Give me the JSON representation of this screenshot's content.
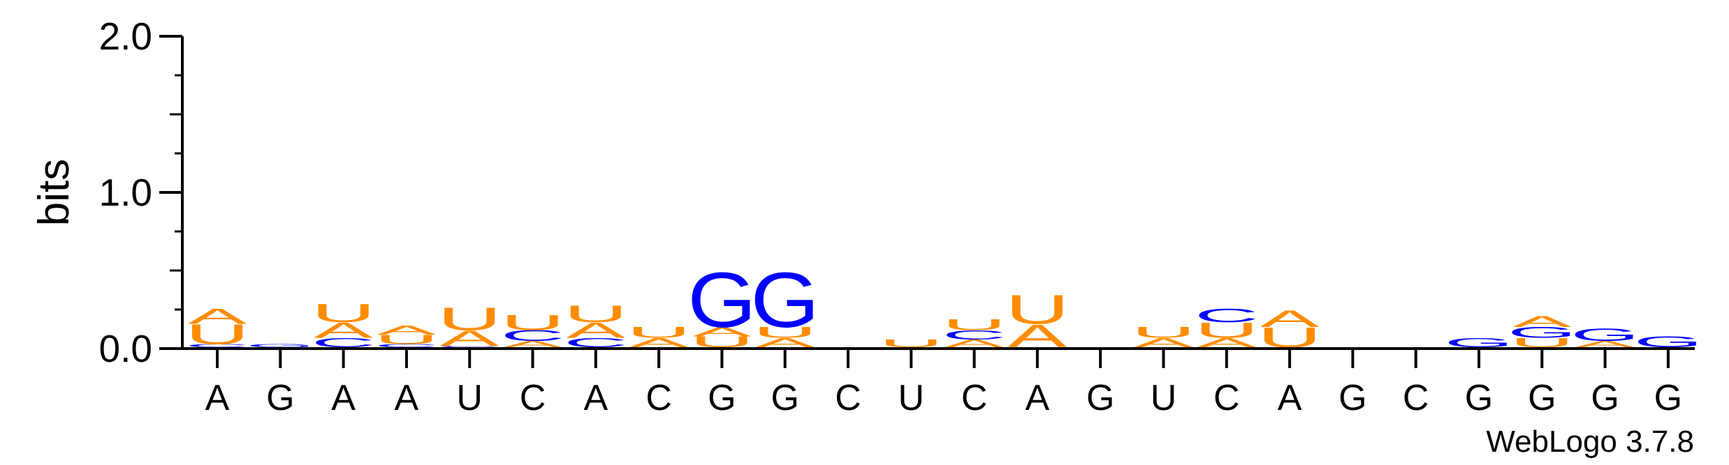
{
  "chart_data": {
    "type": "sequence_logo",
    "ylabel": "bits",
    "ylim": [
      0,
      2.0
    ],
    "yticks": [
      "0.0",
      "1.0",
      "2.0"
    ],
    "xticks": [
      "A",
      "G",
      "A",
      "A",
      "U",
      "C",
      "A",
      "C",
      "G",
      "G",
      "C",
      "U",
      "C",
      "A",
      "G",
      "U",
      "C",
      "A",
      "G",
      "C",
      "G",
      "G",
      "G",
      "G"
    ],
    "footer": "WebLogo 3.7.8",
    "colors": {
      "A": "#ff8c00",
      "U": "#ff8c00",
      "G": "#0000ff",
      "C": "#0000ff"
    },
    "positions": [
      [
        [
          "C",
          0.02
        ],
        [
          "U",
          0.13
        ],
        [
          "A",
          0.1
        ]
      ],
      [
        [
          "G",
          0.02
        ]
      ],
      [
        [
          "C",
          0.06
        ],
        [
          "A",
          0.1
        ],
        [
          "U",
          0.12
        ]
      ],
      [
        [
          "C",
          0.02
        ],
        [
          "U",
          0.06
        ],
        [
          "A",
          0.06
        ]
      ],
      [
        [
          "C",
          0.01
        ],
        [
          "A",
          0.1
        ],
        [
          "U",
          0.15
        ]
      ],
      [
        [
          "A",
          0.04
        ],
        [
          "C",
          0.07
        ],
        [
          "U",
          0.1
        ]
      ],
      [
        [
          "C",
          0.06
        ],
        [
          "A",
          0.1
        ],
        [
          "U",
          0.11
        ]
      ],
      [
        [
          "A",
          0.06
        ],
        [
          "U",
          0.07
        ]
      ],
      [
        [
          "U",
          0.07
        ],
        [
          "A",
          0.06
        ],
        [
          "G",
          0.36
        ]
      ],
      [
        [
          "A",
          0.06
        ],
        [
          "U",
          0.07
        ],
        [
          "G",
          0.36
        ]
      ],
      [],
      [
        [
          "U",
          0.05
        ]
      ],
      [
        [
          "A",
          0.05
        ],
        [
          "C",
          0.06
        ],
        [
          "U",
          0.07
        ]
      ],
      [
        [
          "A",
          0.15
        ],
        [
          "U",
          0.19
        ]
      ],
      [],
      [
        [
          "A",
          0.06
        ],
        [
          "U",
          0.07
        ]
      ],
      [
        [
          "A",
          0.06
        ],
        [
          "U",
          0.1
        ],
        [
          "C",
          0.09
        ]
      ],
      [
        [
          "U",
          0.13
        ],
        [
          "A",
          0.11
        ]
      ],
      [],
      [],
      [
        [
          "G",
          0.06
        ]
      ],
      [
        [
          "U",
          0.06
        ],
        [
          "G",
          0.07
        ],
        [
          "A",
          0.07
        ]
      ],
      [
        [
          "A",
          0.04
        ],
        [
          "G",
          0.08
        ]
      ],
      [
        [
          "G",
          0.07
        ]
      ]
    ]
  }
}
